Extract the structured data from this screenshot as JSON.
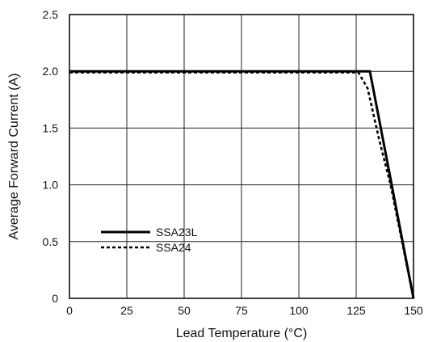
{
  "chart_data": {
    "type": "line",
    "xlabel": "Lead Temperature (°C)",
    "ylabel": "Average Forward Current (A)",
    "xlim": [
      0,
      150
    ],
    "ylim": [
      0,
      2.5
    ],
    "x_ticks": [
      0,
      25,
      50,
      75,
      100,
      125,
      150
    ],
    "y_ticks": [
      0,
      0.5,
      1.0,
      1.5,
      2.0,
      2.5
    ],
    "x_tick_labels": [
      "0",
      "25",
      "50",
      "75",
      "100",
      "125",
      "150"
    ],
    "y_tick_labels": [
      "0",
      "0.5",
      "1.0",
      "1.5",
      "2.0",
      "2.5"
    ],
    "grid": true,
    "legend_placement": "lower-left",
    "series": [
      {
        "name": "SSA23L",
        "style": "solid",
        "color": "#000000",
        "points": [
          [
            0,
            2.0
          ],
          [
            131,
            2.0
          ],
          [
            150,
            0
          ]
        ]
      },
      {
        "name": "SSA24",
        "style": "dotted",
        "color": "#000000",
        "points": [
          [
            0,
            1.99
          ],
          [
            126,
            1.99
          ],
          [
            130,
            1.85
          ],
          [
            135,
            1.4
          ],
          [
            140,
            1.0
          ],
          [
            145,
            0.5
          ],
          [
            150,
            0
          ]
        ]
      }
    ]
  }
}
